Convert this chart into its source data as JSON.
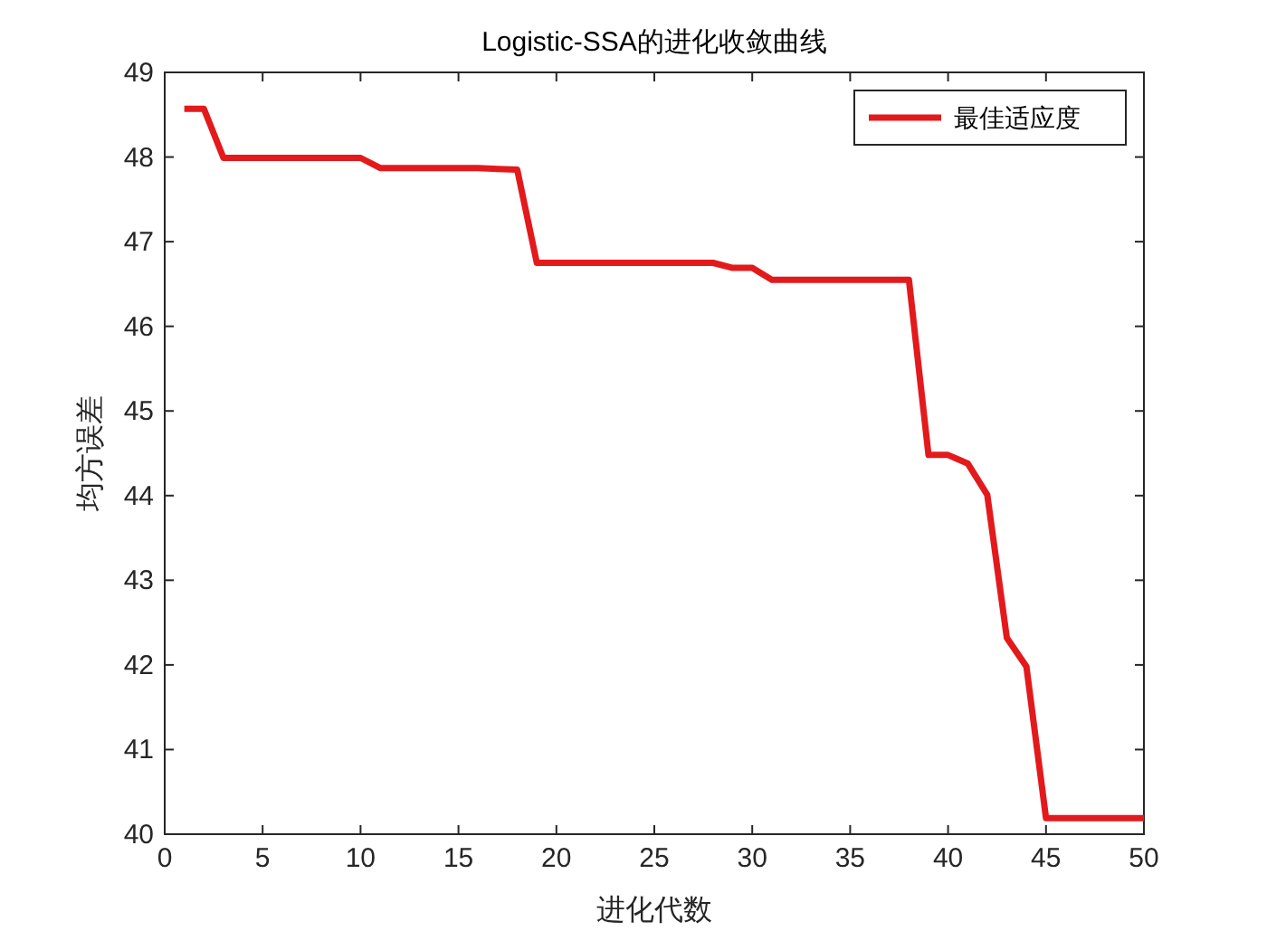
{
  "chart_data": {
    "type": "line",
    "title": "Logistic-SSA的进化收敛曲线",
    "xlabel": "进化代数",
    "ylabel": "均方误差",
    "x": [
      1,
      2,
      3,
      4,
      5,
      6,
      7,
      8,
      9,
      10,
      11,
      12,
      13,
      14,
      15,
      16,
      17,
      18,
      19,
      20,
      21,
      22,
      23,
      24,
      25,
      26,
      27,
      28,
      29,
      30,
      31,
      32,
      33,
      34,
      35,
      36,
      37,
      38,
      39,
      40,
      41,
      42,
      43,
      44,
      45,
      46,
      47,
      48,
      49,
      50
    ],
    "series": [
      {
        "name": "最佳适应度",
        "color": "#e31a1c",
        "values": [
          48.57,
          48.57,
          47.99,
          47.99,
          47.99,
          47.99,
          47.99,
          47.99,
          47.99,
          47.99,
          47.87,
          47.87,
          47.87,
          47.87,
          47.87,
          47.87,
          47.86,
          47.85,
          46.75,
          46.75,
          46.75,
          46.75,
          46.75,
          46.75,
          46.75,
          46.75,
          46.75,
          46.75,
          46.69,
          46.69,
          46.55,
          46.55,
          46.55,
          46.55,
          46.55,
          46.55,
          46.55,
          46.55,
          44.48,
          44.48,
          44.38,
          44.01,
          42.32,
          41.98,
          40.19,
          40.19,
          40.19,
          40.19,
          40.19,
          40.19
        ]
      }
    ],
    "xlim": [
      0,
      50
    ],
    "ylim": [
      40,
      49
    ],
    "xticks": [
      0,
      5,
      10,
      15,
      20,
      25,
      30,
      35,
      40,
      45,
      50
    ],
    "yticks": [
      40,
      41,
      42,
      43,
      44,
      45,
      46,
      47,
      48,
      49
    ],
    "grid": false,
    "legend": "top right",
    "marker": "none",
    "line_style": "solid"
  }
}
